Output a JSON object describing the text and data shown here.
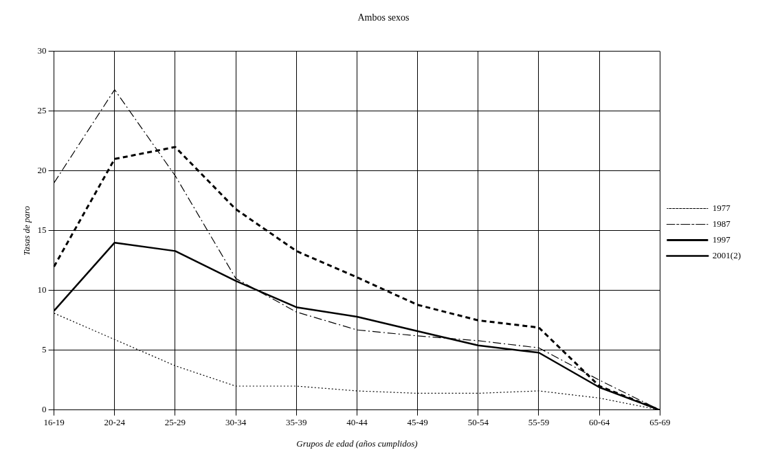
{
  "chart_data": {
    "type": "line",
    "title": "Ambos sexos",
    "xlabel": "Grupos de edad (años cumplidos)",
    "ylabel": "Tasas de paro",
    "categories": [
      "16-19",
      "20-24",
      "25-29",
      "30-34",
      "35-39",
      "40-44",
      "45-49",
      "50-54",
      "55-59",
      "60-64",
      "65-69"
    ],
    "series": [
      {
        "name": "1977",
        "color": "#000000",
        "line_style": "dotted",
        "values": [
          8.1,
          5.9,
          3.7,
          2.0,
          2.0,
          1.6,
          1.4,
          1.4,
          1.6,
          1.0,
          0
        ]
      },
      {
        "name": "1987",
        "color": "#000000",
        "line_style": "dashed",
        "values": [
          19,
          26.8,
          19.6,
          11,
          8.2,
          6.7,
          6.2,
          5.8,
          5.2,
          2.5,
          0
        ]
      },
      {
        "name": "1997",
        "color": "#000000",
        "line_style": "dashed",
        "values": [
          12,
          21,
          22,
          16.8,
          13.3,
          11.1,
          8.8,
          7.5,
          6.9,
          2.0,
          0
        ]
      },
      {
        "name": "2001(2)",
        "color": "#000000",
        "line_style": "solid",
        "values": [
          8.3,
          14,
          13.3,
          10.8,
          8.6,
          7.8,
          6.6,
          5.4,
          4.8,
          1.9,
          0
        ]
      }
    ],
    "ylim": [
      0,
      30
    ],
    "yticks": [
      0,
      5,
      10,
      15,
      20,
      25,
      30
    ],
    "grid": true,
    "legend": "right",
    "marker": "none"
  }
}
